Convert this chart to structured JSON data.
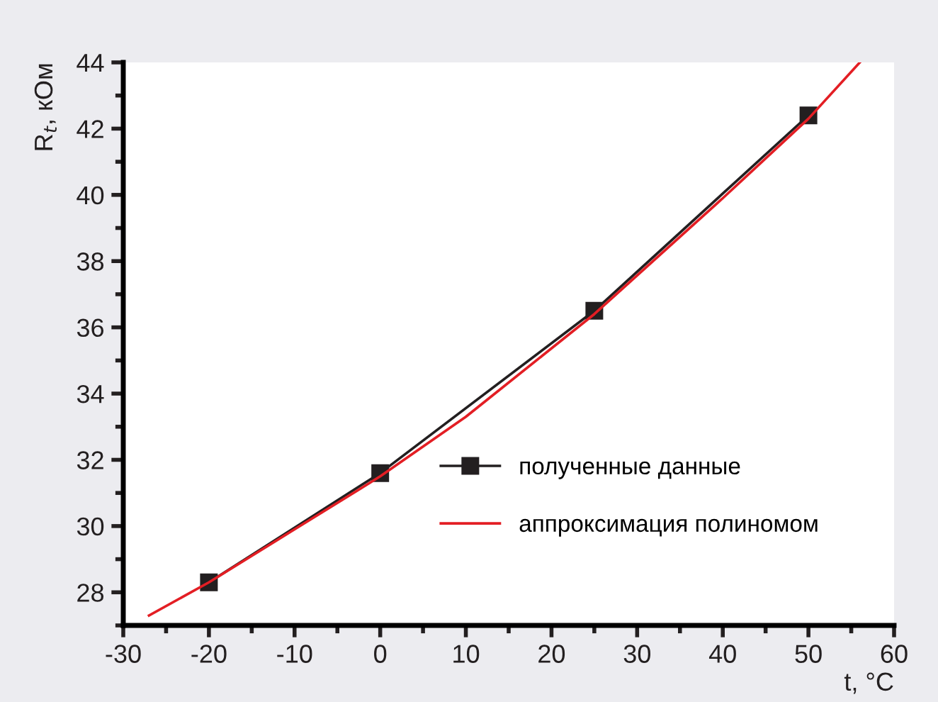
{
  "chart_data": {
    "type": "line",
    "xlabel": "t, °C",
    "ylabel": "R$_{t}$, кОм",
    "xlim": [
      -30,
      60
    ],
    "xticks": [
      -30,
      -20,
      -10,
      0,
      10,
      20,
      30,
      40,
      50,
      60
    ],
    "ylim": [
      27,
      44
    ],
    "yticks": [
      28,
      30,
      32,
      34,
      36,
      38,
      40,
      42,
      44
    ],
    "grid": false,
    "legend": "bottom right",
    "series": [
      {
        "name": "полученные данные",
        "color": "#231f20",
        "marker": "square",
        "x": [
          -20,
          0,
          25,
          50
        ],
        "values": [
          28.3,
          31.6,
          36.5,
          42.4
        ]
      },
      {
        "name": "аппроксимация полиномом",
        "color": "#e31e24",
        "marker": "none",
        "x": [
          -27,
          -20,
          -10,
          0,
          10,
          25,
          40,
          50,
          56
        ],
        "values": [
          27.3,
          28.3,
          29.9,
          31.5,
          33.3,
          36.4,
          39.9,
          42.3,
          44.0
        ]
      }
    ]
  }
}
